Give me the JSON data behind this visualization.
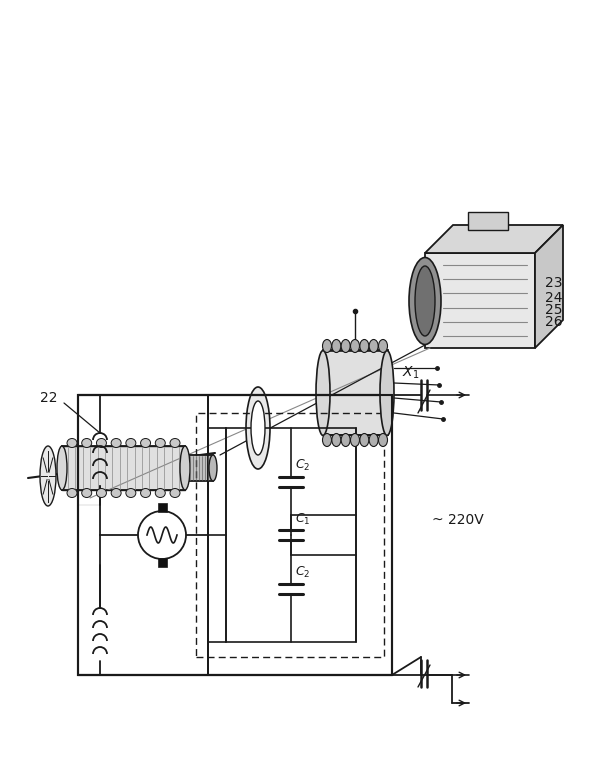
{
  "bg_color": "#ffffff",
  "line_color": "#1a1a1a",
  "fig_width": 5.91,
  "fig_height": 7.63,
  "dpi": 100
}
